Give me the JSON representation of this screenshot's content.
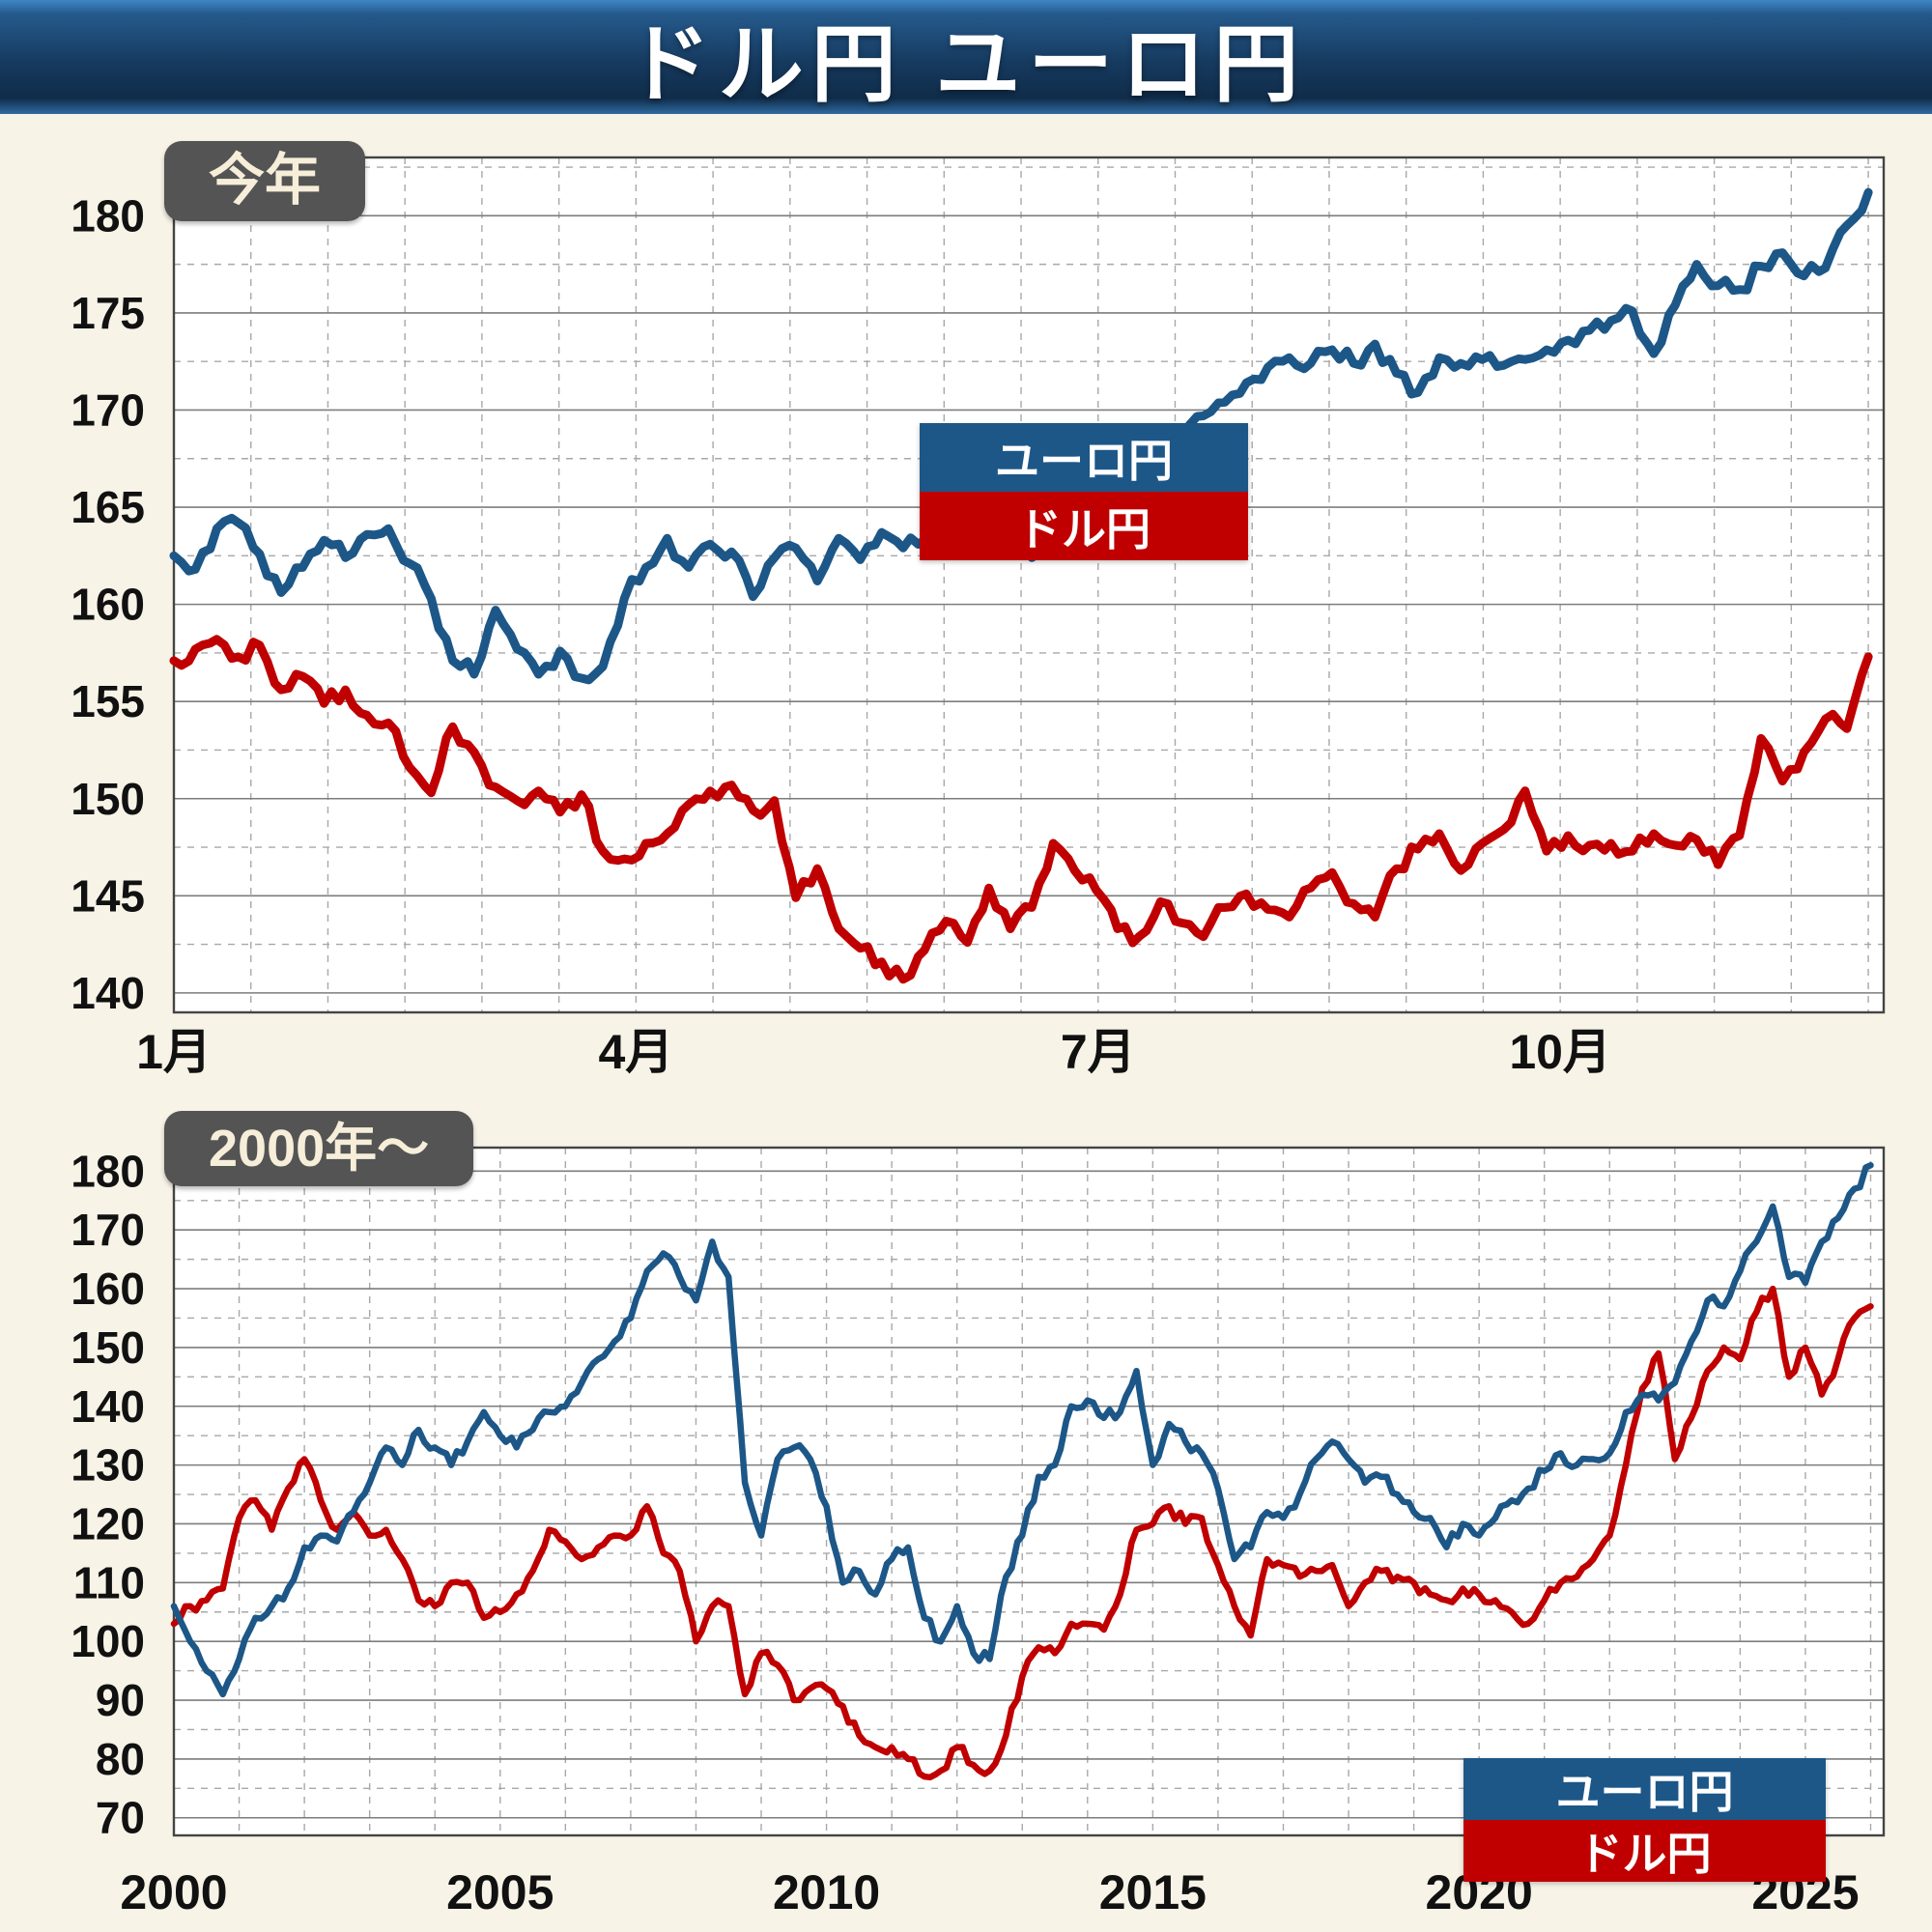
{
  "title": "ドル円 ユーロ円",
  "colors": {
    "euro": "#1c5788",
    "dollar": "#c00000",
    "header_top": "#3e86c6",
    "header_main": "#15385d",
    "page_bg": "#f7f3e7",
    "plot_bg": "#ffffff",
    "badge_bg": "#545454",
    "badge_text": "#f6eed9",
    "grid_minor": "#a8a8a8",
    "grid_major": "#7d7d7d",
    "plot_border": "#444444",
    "axis_text": "#111111"
  },
  "chart_data": [
    {
      "type": "line",
      "badge": "今年",
      "title": "",
      "xlabel": "",
      "ylabel": "",
      "legend_position": "center-right",
      "grid": true,
      "xlim": [
        0,
        11.1
      ],
      "ylim": [
        139,
        183
      ],
      "minor_y_step": 2.5,
      "minor_x_step": 0.5,
      "yticks": [
        {
          "v": 180,
          "label": "180"
        },
        {
          "v": 175,
          "label": "175"
        },
        {
          "v": 170,
          "label": "170"
        },
        {
          "v": 165,
          "label": "165"
        },
        {
          "v": 160,
          "label": "160"
        },
        {
          "v": 155,
          "label": "155"
        },
        {
          "v": 150,
          "label": "150"
        },
        {
          "v": 145,
          "label": "145"
        },
        {
          "v": 140,
          "label": "140"
        }
      ],
      "xticks": [
        {
          "v": 0,
          "label": "1月"
        },
        {
          "v": 3,
          "label": "4月"
        },
        {
          "v": 6,
          "label": "7月"
        },
        {
          "v": 9,
          "label": "10月"
        }
      ],
      "series": [
        {
          "name": "ユーロ円",
          "color_key": "euro",
          "x_range": [
            0,
            11.0
          ],
          "values": [
            162.5,
            161.8,
            163.9,
            164.2,
            162.6,
            160.6,
            161.9,
            163.3,
            162.4,
            163.6,
            163.9,
            162.1,
            160.3,
            157.1,
            156.4,
            159.7,
            157.7,
            156.4,
            157.6,
            156.2,
            156.8,
            160.3,
            161.9,
            163.4,
            161.9,
            163.1,
            162.7,
            160.4,
            162.4,
            162.9,
            161.2,
            163.4,
            162.3,
            163.7,
            162.9,
            163.3,
            164.4,
            163.1,
            165.4,
            163.3,
            162.4,
            163.6,
            164.4,
            163.9,
            165.1,
            166.4,
            167.7,
            168.4,
            169.7,
            170.4,
            171.4,
            172.2,
            172.7,
            172.4,
            173.1,
            172.4,
            173.4,
            171.9,
            170.9,
            172.7,
            172.4,
            172.6,
            172.3,
            172.6,
            173.1,
            173.6,
            174.1,
            174.6,
            175.1,
            172.9,
            175.4,
            177.5,
            176.4,
            176.2,
            177.4,
            178.1,
            176.9,
            177.3,
            179.5,
            181.2
          ]
        },
        {
          "name": "ドル円",
          "color_key": "dollar",
          "x_range": [
            0,
            11.0
          ],
          "values": [
            157.1,
            157.7,
            158.2,
            157.3,
            157.9,
            155.6,
            156.3,
            154.9,
            155.6,
            154.3,
            153.9,
            151.6,
            150.3,
            153.7,
            152.4,
            150.6,
            149.9,
            150.4,
            149.3,
            150.2,
            147.3,
            146.9,
            147.7,
            148.2,
            149.7,
            150.4,
            150.7,
            149.4,
            149.9,
            144.9,
            146.4,
            143.3,
            142.3,
            141.6,
            140.7,
            142.2,
            143.7,
            142.6,
            145.4,
            143.3,
            144.4,
            147.7,
            146.3,
            145.3,
            143.3,
            142.9,
            144.7,
            143.6,
            142.9,
            144.4,
            145.1,
            144.3,
            143.9,
            145.4,
            146.2,
            144.6,
            143.9,
            146.4,
            147.4,
            148.2,
            146.3,
            147.7,
            148.4,
            150.4,
            147.3,
            148.1,
            147.6,
            147.7,
            147.3,
            148.2,
            147.6,
            147.9,
            146.6,
            148.1,
            153.1,
            150.9,
            152.4,
            154.1,
            153.6,
            157.3
          ]
        }
      ]
    },
    {
      "type": "line",
      "badge": "2000年〜",
      "title": "",
      "xlabel": "",
      "ylabel": "",
      "legend_position": "bottom-right",
      "grid": true,
      "xlim": [
        2000,
        2026.2
      ],
      "ylim": [
        67,
        184
      ],
      "minor_y_step": 5,
      "minor_x_step": 1,
      "yticks": [
        {
          "v": 180,
          "label": "180"
        },
        {
          "v": 170,
          "label": "170"
        },
        {
          "v": 160,
          "label": "160"
        },
        {
          "v": 150,
          "label": "150"
        },
        {
          "v": 140,
          "label": "140"
        },
        {
          "v": 130,
          "label": "130"
        },
        {
          "v": 120,
          "label": "120"
        },
        {
          "v": 110,
          "label": "110"
        },
        {
          "v": 100,
          "label": "100"
        },
        {
          "v": 90,
          "label": "90"
        },
        {
          "v": 80,
          "label": "80"
        },
        {
          "v": 70,
          "label": "70"
        }
      ],
      "xticks": [
        {
          "v": 2000,
          "label": "2000"
        },
        {
          "v": 2005,
          "label": "2005"
        },
        {
          "v": 2010,
          "label": "2010"
        },
        {
          "v": 2015,
          "label": "2015"
        },
        {
          "v": 2020,
          "label": "2020"
        },
        {
          "v": 2025,
          "label": "2025"
        }
      ],
      "series": [
        {
          "name": "ユーロ円",
          "color_key": "euro",
          "x_range": [
            2000,
            2026
          ],
          "values": [
            106,
            100,
            95,
            91,
            97,
            104,
            106,
            109,
            116,
            118,
            117,
            122,
            127,
            133,
            130,
            136,
            133,
            130,
            134,
            139,
            135,
            133,
            136,
            139,
            140,
            144,
            148,
            151,
            155,
            163,
            166,
            162,
            158,
            168,
            162,
            127,
            118,
            131,
            133,
            131,
            123,
            110,
            112,
            108,
            114,
            116,
            104,
            100,
            106,
            98,
            97,
            111,
            118,
            128,
            130,
            140,
            141,
            138,
            139,
            146,
            130,
            137,
            134,
            132,
            126,
            114,
            116,
            122,
            121,
            125,
            131,
            134,
            131,
            127,
            128,
            125,
            122,
            121,
            116,
            120,
            118,
            121,
            124,
            126,
            129,
            132,
            130,
            131,
            132,
            139,
            142,
            141,
            144,
            151,
            158,
            157,
            163,
            168,
            174,
            162,
            161,
            168,
            172,
            177,
            181
          ]
        },
        {
          "name": "ドル円",
          "color_key": "dollar",
          "x_range": [
            2000,
            2026
          ],
          "values": [
            103,
            106,
            107,
            109,
            121,
            124,
            119,
            126,
            131,
            124,
            119,
            122,
            118,
            119,
            114,
            107,
            106,
            110,
            110,
            104,
            105,
            108,
            112,
            119,
            117,
            114,
            116,
            118,
            118,
            123,
            115,
            112,
            100,
            106,
            106,
            91,
            98,
            96,
            90,
            92,
            92,
            89,
            84,
            82,
            82,
            80,
            77,
            78,
            82,
            79,
            78,
            84,
            94,
            99,
            98,
            103,
            103,
            102,
            108,
            119,
            120,
            123,
            120,
            121,
            113,
            106,
            101,
            114,
            113,
            111,
            112,
            113,
            106,
            110,
            112,
            111,
            110,
            108,
            107,
            109,
            108,
            107,
            105,
            103,
            107,
            110,
            111,
            114,
            118,
            130,
            143,
            149,
            131,
            138,
            146,
            150,
            148,
            156,
            160,
            145,
            150,
            142,
            148,
            155,
            157
          ]
        }
      ]
    }
  ]
}
